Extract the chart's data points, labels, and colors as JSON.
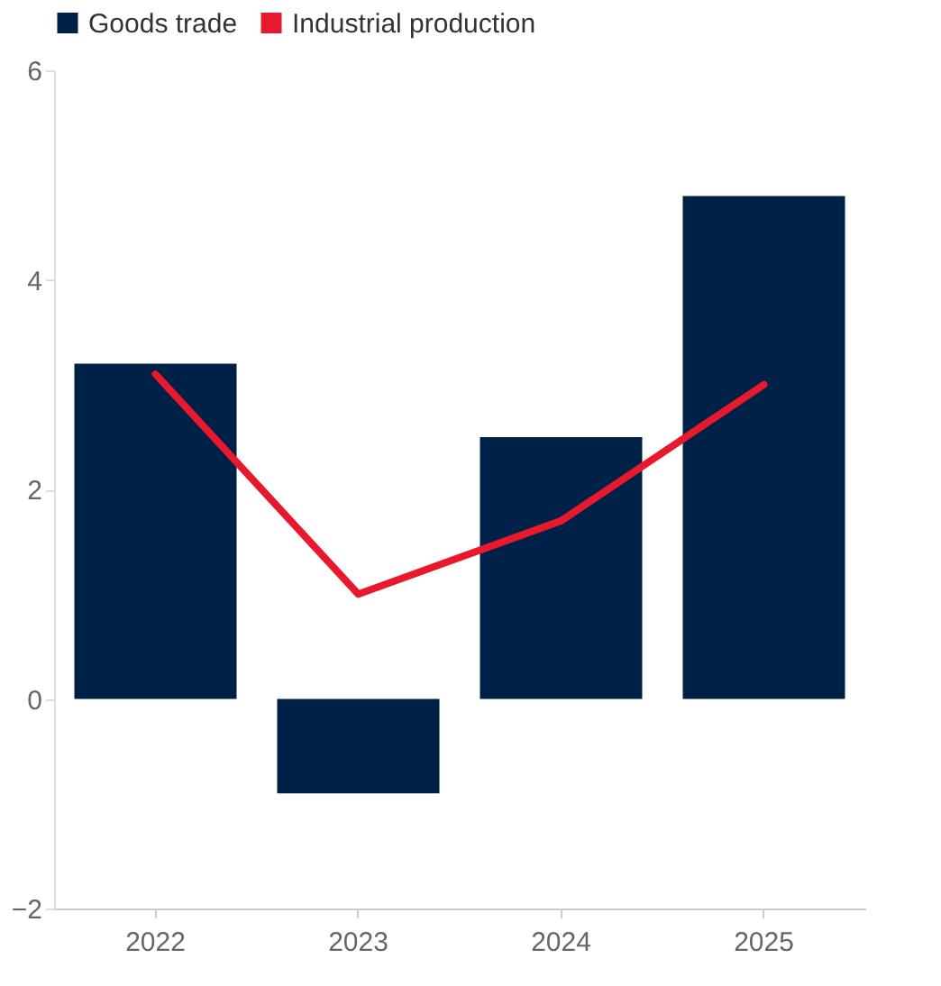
{
  "chart_data": {
    "type": "bar",
    "categories": [
      "2022",
      "2023",
      "2024",
      "2025"
    ],
    "series": [
      {
        "name": "Goods trade",
        "color": "#002147",
        "values": [
          3.2,
          -0.9,
          2.5,
          4.8
        ]
      },
      {
        "name": "Industrial production",
        "type": "line",
        "color": "#e8192c",
        "values": [
          3.1,
          1.0,
          1.7,
          3.0
        ]
      }
    ],
    "ylim": [
      -2,
      6
    ],
    "yticks": [
      -2,
      0,
      2,
      4,
      6
    ],
    "grid": false,
    "legend": "top"
  }
}
